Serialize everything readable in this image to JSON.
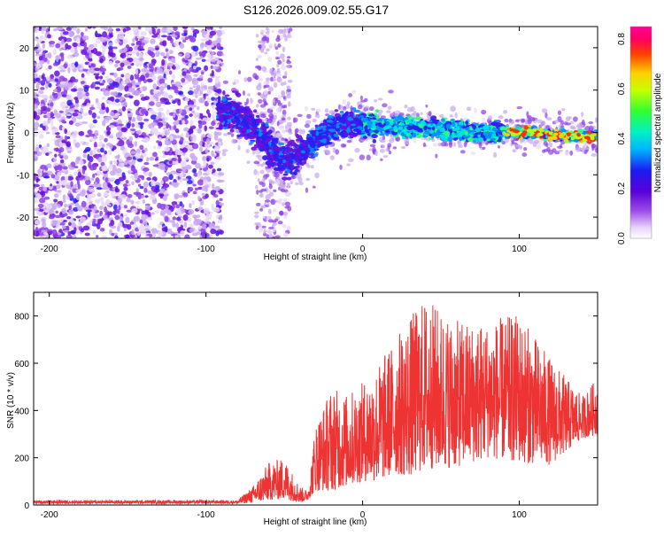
{
  "title": "S126.2026.009.02.55.G17",
  "chart_data": [
    {
      "type": "heatmap",
      "panel": "top",
      "xlabel": "Height of straight line (km)",
      "ylabel": "Frequency (Hz)",
      "xlim": [
        -210,
        150
      ],
      "ylim": [
        -25,
        25
      ],
      "xticks": [
        -200,
        -100,
        0,
        100
      ],
      "yticks": [
        -20,
        -10,
        0,
        10,
        20
      ],
      "colorbar": {
        "label": "Normalized spectral amplitude",
        "range": [
          0,
          0.85
        ],
        "ticks": [
          "0.0",
          "0.2",
          "0.4",
          "0.6",
          "0.8"
        ]
      },
      "description_series": [
        {
          "name": "noise region",
          "x_range": [
            -210,
            -92
          ],
          "freq_spread": 25
        },
        {
          "name": "signal track center frequency",
          "x": [
            -90,
            -80,
            -70,
            -60,
            -50,
            -40,
            -30,
            -20,
            -10,
            0,
            20,
            40,
            60,
            80,
            100,
            120,
            145
          ],
          "freq": [
            5,
            4,
            1,
            -3,
            -7,
            -5,
            -2,
            1,
            2,
            2,
            1.5,
            1,
            0.5,
            0,
            0,
            -0.5,
            -1
          ]
        }
      ]
    },
    {
      "type": "line",
      "panel": "bottom",
      "xlabel": "Height of straight line (km)",
      "ylabel": "SNR (10 * v/v)",
      "xlim": [
        -210,
        150
      ],
      "ylim": [
        0,
        900
      ],
      "xticks": [
        -200,
        -100,
        0,
        100
      ],
      "yticks": [
        0,
        200,
        400,
        600,
        800
      ],
      "color": "#ee3333",
      "envelope": {
        "x": [
          -210,
          -80,
          -70,
          -60,
          -50,
          -40,
          -35,
          -30,
          -20,
          -10,
          0,
          10,
          20,
          30,
          40,
          60,
          80,
          100,
          120,
          140,
          150
        ],
        "max": [
          20,
          20,
          80,
          180,
          200,
          80,
          60,
          350,
          500,
          470,
          520,
          600,
          700,
          800,
          880,
          780,
          780,
          810,
          620,
          460,
          540
        ],
        "min": [
          5,
          5,
          10,
          20,
          25,
          10,
          20,
          60,
          60,
          80,
          100,
          100,
          130,
          120,
          150,
          160,
          200,
          180,
          170,
          280,
          300
        ]
      }
    }
  ]
}
